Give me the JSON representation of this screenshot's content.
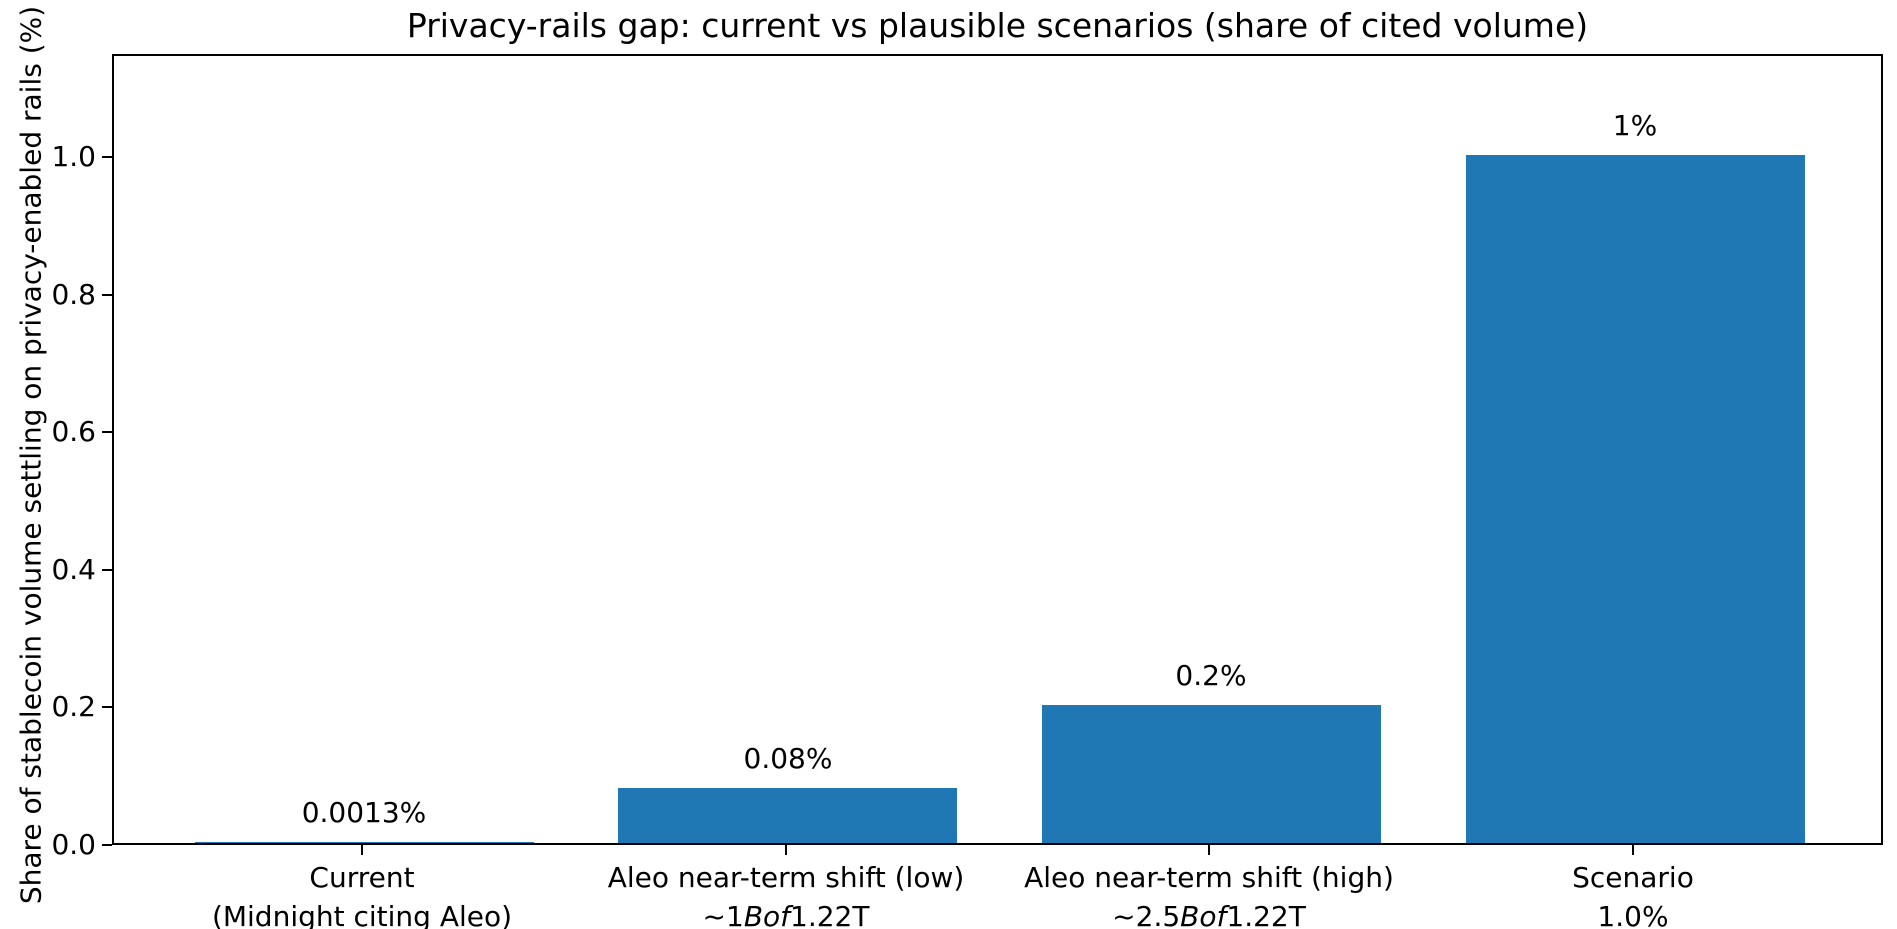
{
  "figure": {
    "background": "#ffffff",
    "text_color": "#000000"
  },
  "chart_data": {
    "type": "bar",
    "title": "Privacy-rails gap: current vs plausible scenarios (share of cited volume)",
    "xlabel": "",
    "ylabel": "Share of stablecoin volume settling on privacy-enabled rails (%)",
    "categories": [
      "Current\n(Midnight citing Aleo)",
      "Aleo near-term shift (low)\n~1Bof1.22T",
      "Aleo near-term shift (high)\n~2.5Bof1.22T",
      "Scenario\n1.0%"
    ],
    "categories_rich": [
      {
        "lines": [
          [
            {
              "t": "Current"
            }
          ],
          [
            {
              "t": "(Midnight citing Aleo)"
            }
          ]
        ]
      },
      {
        "lines": [
          [
            {
              "t": "Aleo near-term shift (low)"
            }
          ],
          [
            {
              "t": "~1"
            },
            {
              "t": "Bof",
              "i": true
            },
            {
              "t": "1.22T"
            }
          ]
        ]
      },
      {
        "lines": [
          [
            {
              "t": "Aleo near-term shift (high)"
            }
          ],
          [
            {
              "t": "~2.5"
            },
            {
              "t": "Bof",
              "i": true
            },
            {
              "t": "1.22T"
            }
          ]
        ]
      },
      {
        "lines": [
          [
            {
              "t": "Scenario"
            }
          ],
          [
            {
              "t": "1.0%"
            }
          ]
        ]
      }
    ],
    "values": [
      0.0013,
      0.08,
      0.2,
      1.0
    ],
    "bar_labels": [
      "0.0013%",
      "0.08%",
      "0.2%",
      "1%"
    ],
    "yticks": [
      0.0,
      0.2,
      0.4,
      0.6,
      0.8,
      1.0
    ],
    "ytick_labels": [
      "0.0",
      "0.2",
      "0.4",
      "0.6",
      "0.8",
      "1.0"
    ],
    "ylim": [
      0,
      1.15
    ],
    "xlim": [
      -0.59,
      3.59
    ],
    "bar_width": 0.8,
    "bar_color": "#1f77b4",
    "grid": false,
    "legend": null
  }
}
